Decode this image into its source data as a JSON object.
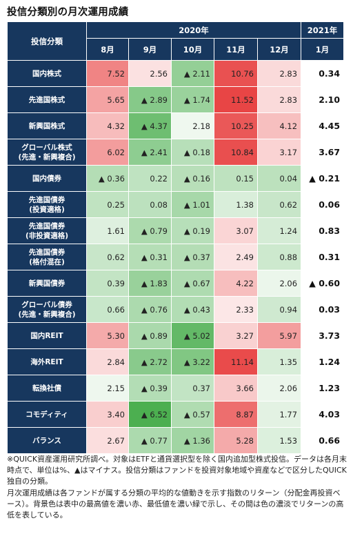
{
  "title": "投信分類別の月次運用成績",
  "header": {
    "category_label": "投信分類",
    "year_2020": "2020年",
    "year_2021": "2021年",
    "months": [
      "8月",
      "9月",
      "10月",
      "11月",
      "12月",
      "1月"
    ]
  },
  "rows": [
    {
      "name": "国内株式",
      "values": [
        "7.52",
        "2.56",
        "▲ 2.11",
        "10.76",
        "2.83",
        "0.34"
      ]
    },
    {
      "name": "先進国株式",
      "values": [
        "5.65",
        "▲ 2.89",
        "▲ 1.74",
        "11.52",
        "2.83",
        "2.10"
      ]
    },
    {
      "name": "新興国株式",
      "values": [
        "4.32",
        "▲ 4.37",
        "2.18",
        "10.25",
        "4.12",
        "4.45"
      ]
    },
    {
      "name": "グローバル株式\n(先進・新興複合)",
      "values": [
        "6.02",
        "▲ 2.41",
        "▲ 0.18",
        "10.84",
        "3.17",
        "3.67"
      ]
    },
    {
      "name": "国内債券",
      "values": [
        "▲ 0.36",
        "0.22",
        "▲ 0.16",
        "0.15",
        "0.04",
        "▲ 0.21"
      ]
    },
    {
      "name": "先進国債券\n(投資適格)",
      "values": [
        "0.25",
        "0.08",
        "▲ 1.01",
        "1.38",
        "0.62",
        "0.06"
      ]
    },
    {
      "name": "先進国債券\n(非投資適格)",
      "values": [
        "1.61",
        "▲ 0.79",
        "▲ 0.19",
        "3.07",
        "1.24",
        "0.83"
      ]
    },
    {
      "name": "先進国債券\n(格付混在)",
      "values": [
        "0.62",
        "▲ 0.31",
        "▲ 0.37",
        "2.49",
        "0.88",
        "0.31"
      ]
    },
    {
      "name": "新興国債券",
      "values": [
        "0.39",
        "▲ 1.83",
        "▲ 0.67",
        "4.22",
        "2.06",
        "▲ 0.60"
      ]
    },
    {
      "name": "グローバル債券\n(先進・新興複合)",
      "values": [
        "0.66",
        "▲ 0.76",
        "▲ 0.43",
        "2.33",
        "0.94",
        "0.03"
      ]
    },
    {
      "name": "国内REIT",
      "values": [
        "5.30",
        "▲ 0.89",
        "▲ 5.02",
        "3.27",
        "5.97",
        "3.73"
      ]
    },
    {
      "name": "海外REIT",
      "values": [
        "2.84",
        "▲ 2.72",
        "▲ 3.22",
        "11.14",
        "1.35",
        "1.24"
      ]
    },
    {
      "name": "転換社債",
      "values": [
        "2.15",
        "▲ 0.39",
        "0.37",
        "3.66",
        "2.06",
        "1.23"
      ]
    },
    {
      "name": "コモディティ",
      "values": [
        "3.40",
        "▲ 6.52",
        "▲ 0.57",
        "8.87",
        "1.77",
        "4.03"
      ]
    },
    {
      "name": "バランス",
      "values": [
        "2.67",
        "▲ 0.77",
        "▲ 1.36",
        "5.28",
        "1.53",
        "0.66"
      ]
    }
  ],
  "colors": {
    "header_bg": "#17375e",
    "highest": "#e84545",
    "lowest": "#4caf50"
  },
  "footnote": "※QUICK資産運用研究所調べ。対象はETFと通貨選択型を除く国内追加型株式投信。データは各月末時点で、単位は%、▲はマイナス。投信分類はファンドを投資対象地域や資産などで区分したQUICK独自の分類。\n月次運用成績は各ファンドが属する分類の平均的な値動きを示す指数のリターン（分配金再投資ベース）。背景色は表中の最高値を濃い赤、最低値を濃い緑で示し、その間は色の濃淡でリターンの高低を表している。"
}
